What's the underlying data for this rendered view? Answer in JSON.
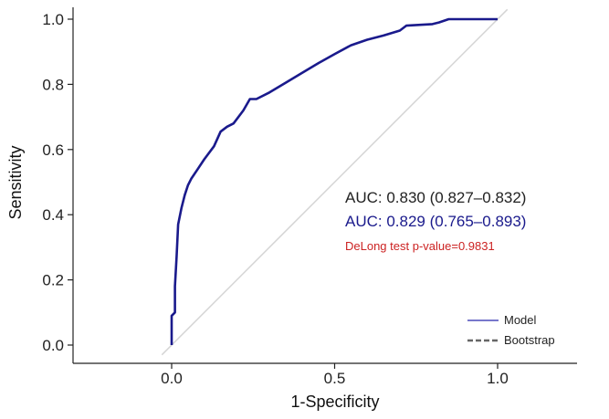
{
  "chart_data": {
    "type": "line",
    "xlabel": "1-Specificity",
    "ylabel": "Sensitivity",
    "xlim": [
      -0.2,
      1.3
    ],
    "ylim": [
      -0.05,
      1.03
    ],
    "x_ticks": [
      "0.0",
      "0.5",
      "1.0"
    ],
    "y_ticks": [
      "0.0",
      "0.2",
      "0.4",
      "0.6",
      "0.8",
      "1.0"
    ],
    "x_tick_values": [
      0,
      0.5,
      1
    ],
    "y_tick_values": [
      0,
      0.2,
      0.4,
      0.6,
      0.8,
      1
    ],
    "grid": false,
    "legend_position": "bottom-right",
    "series": [
      {
        "name": "Model",
        "color": "#1a1a8c",
        "x": [
          0,
          0,
          0.01,
          0.01,
          0.015,
          0.02,
          0.03,
          0.04,
          0.05,
          0.06,
          0.08,
          0.1,
          0.13,
          0.15,
          0.17,
          0.19,
          0.22,
          0.24,
          0.26,
          0.3,
          0.35,
          0.4,
          0.45,
          0.5,
          0.55,
          0.6,
          0.65,
          0.7,
          0.72,
          0.8,
          0.82,
          0.85,
          0.9,
          0.95,
          1
        ],
        "y": [
          0,
          0.09,
          0.1,
          0.18,
          0.27,
          0.37,
          0.42,
          0.46,
          0.49,
          0.51,
          0.54,
          0.57,
          0.61,
          0.655,
          0.67,
          0.68,
          0.72,
          0.755,
          0.755,
          0.775,
          0.805,
          0.835,
          0.865,
          0.893,
          0.92,
          0.937,
          0.95,
          0.965,
          0.98,
          0.985,
          0.99,
          1,
          1,
          1,
          1
        ]
      },
      {
        "name": "Bootstrap",
        "color": "#666666",
        "x": [
          -0.03,
          1.03
        ],
        "y": [
          -0.03,
          1.03
        ]
      }
    ],
    "annotations": [
      {
        "text": "AUC: 0.830 (0.827–0.832)",
        "color": "#222222"
      },
      {
        "text": "AUC: 0.829 (0.765–0.893)",
        "color": "#1a1a8c"
      },
      {
        "text": "DeLong test p-value=0.9831",
        "color": "#cc2222"
      }
    ]
  },
  "colors": {
    "axis": "#222222",
    "diagonal": "#d4d4d4",
    "model_legend": "#7777cc",
    "bootstrap_legend": "#666666"
  }
}
